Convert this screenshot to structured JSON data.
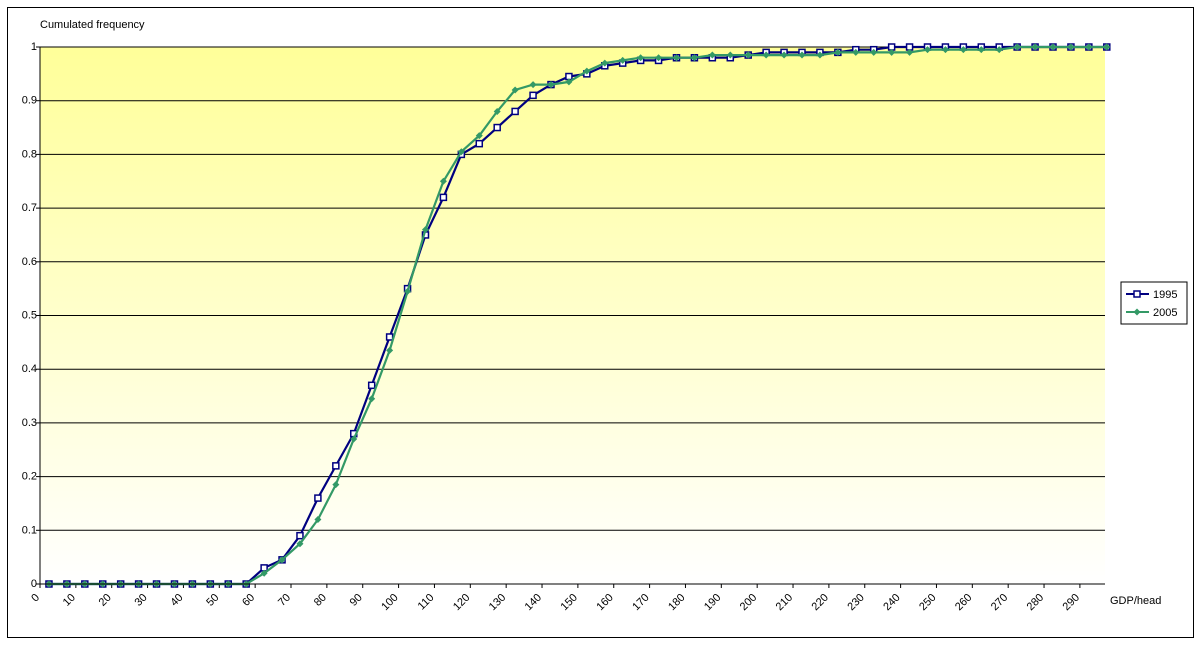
{
  "chart_data": {
    "type": "line",
    "title": "Cumulated frequency",
    "x_label": "GDP/head",
    "x": [
      2.5,
      7.5,
      12.5,
      17.5,
      22.5,
      27.5,
      32.5,
      37.5,
      42.5,
      47.5,
      52.5,
      57.5,
      62.5,
      67.5,
      72.5,
      77.5,
      82.5,
      87.5,
      92.5,
      97.5,
      102.5,
      107.5,
      112.5,
      117.5,
      122.5,
      127.5,
      132.5,
      137.5,
      142.5,
      147.5,
      152.5,
      157.5,
      162.5,
      167.5,
      172.5,
      177.5,
      182.5,
      187.5,
      192.5,
      197.5,
      202.5,
      207.5,
      212.5,
      217.5,
      222.5,
      227.5,
      232.5,
      237.5,
      242.5,
      247.5,
      252.5,
      257.5,
      262.5,
      267.5,
      272.5,
      277.5,
      282.5,
      287.5,
      292.5,
      297.5
    ],
    "series": [
      {
        "name": "1995",
        "color": "#000080",
        "marker": "square",
        "values": [
          0,
          0,
          0,
          0,
          0,
          0,
          0,
          0,
          0,
          0,
          0,
          0,
          0.03,
          0.045,
          0.09,
          0.16,
          0.22,
          0.28,
          0.37,
          0.46,
          0.55,
          0.65,
          0.72,
          0.8,
          0.82,
          0.85,
          0.88,
          0.91,
          0.93,
          0.945,
          0.95,
          0.965,
          0.97,
          0.975,
          0.975,
          0.98,
          0.98,
          0.98,
          0.98,
          0.985,
          0.99,
          0.99,
          0.99,
          0.99,
          0.99,
          0.995,
          0.995,
          1,
          1,
          1,
          1,
          1,
          1,
          1,
          1,
          1,
          1,
          1,
          1,
          1
        ]
      },
      {
        "name": "2005",
        "color": "#339966",
        "marker": "diamond",
        "values": [
          0,
          0,
          0,
          0,
          0,
          0,
          0,
          0,
          0,
          0,
          0,
          0,
          0.02,
          0.045,
          0.075,
          0.12,
          0.185,
          0.27,
          0.345,
          0.435,
          0.545,
          0.66,
          0.75,
          0.805,
          0.835,
          0.88,
          0.92,
          0.93,
          0.93,
          0.935,
          0.955,
          0.97,
          0.975,
          0.98,
          0.98,
          0.98,
          0.98,
          0.985,
          0.985,
          0.985,
          0.985,
          0.985,
          0.985,
          0.985,
          0.99,
          0.99,
          0.99,
          0.99,
          0.99,
          0.995,
          0.995,
          0.995,
          0.995,
          0.995,
          1,
          1,
          1,
          1,
          1,
          1
        ]
      }
    ],
    "xlim": [
      0,
      297
    ],
    "xticks": [
      0,
      10,
      20,
      30,
      40,
      50,
      60,
      70,
      80,
      90,
      100,
      110,
      120,
      130,
      140,
      150,
      160,
      170,
      180,
      190,
      200,
      210,
      220,
      230,
      240,
      250,
      260,
      270,
      280,
      290
    ],
    "ylim": [
      0,
      1
    ],
    "yticks": [
      0,
      0.1,
      0.2,
      0.3,
      0.4,
      0.5,
      0.6,
      0.7,
      0.8,
      0.9,
      1
    ],
    "grid": true,
    "legend": "right"
  }
}
